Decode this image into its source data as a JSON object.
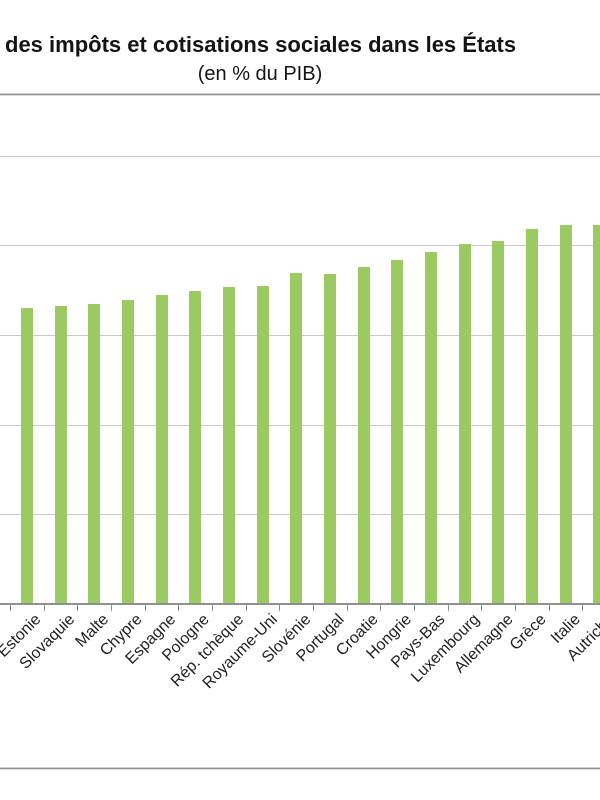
{
  "header": {
    "title_visible_fragment": "des impôts et cotisations sociales dans les États",
    "subtitle": "(en % du PIB)"
  },
  "chart_data": {
    "type": "bar",
    "title": "des impôts et cotisations sociales dans les États",
    "subtitle": "(en % du PIB)",
    "ylabel": "",
    "xlabel": "",
    "unit": "% du PIB",
    "categories": [
      "Estonie",
      "Slovaquie",
      "Malte",
      "Chypre",
      "Espagne",
      "Pologne",
      "Rép. tchèque",
      "Royaume-Uni",
      "Slovénie",
      "Portugal",
      "Croatie",
      "Hongrie",
      "Pays-Bas",
      "Luxembourg",
      "Allemagne",
      "Grèce",
      "Italie",
      "Autriche"
    ],
    "values": [
      33.0,
      33.2,
      33.4,
      33.9,
      34.4,
      34.9,
      35.3,
      35.4,
      36.9,
      36.8,
      37.6,
      38.4,
      39.2,
      40.1,
      40.5,
      41.8,
      42.3,
      42.2
    ],
    "ylim": [
      0,
      56.7
    ],
    "gridline_values": [
      10,
      20,
      30,
      40,
      50
    ],
    "grid": true,
    "legend": false,
    "x_tick_label_rotation_deg": 45
  },
  "colors": {
    "bar": "#9cca62",
    "gridline": "#c9c9c9",
    "axis": "#909090",
    "frame": "#8f8f8f",
    "text": "#141414"
  }
}
